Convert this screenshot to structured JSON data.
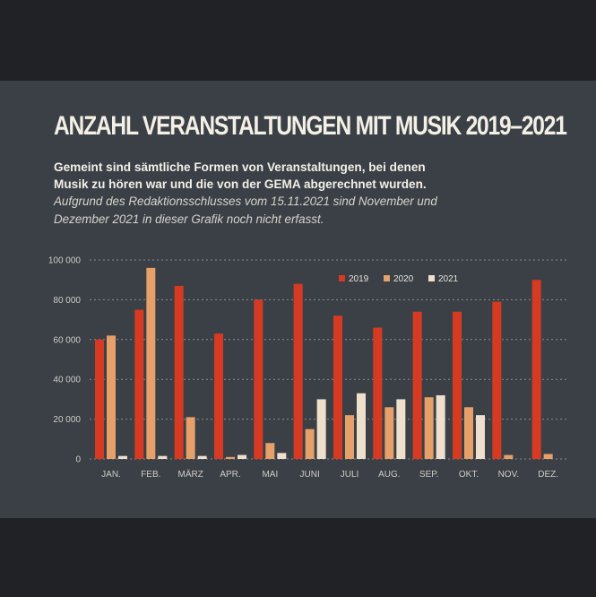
{
  "header": {
    "title": "ANZAHL VERANSTALTUNGEN MIT MUSIK 2019–2021",
    "subtitle_line1": "Gemeint sind sämtliche Formen von Veranstaltungen, bei denen",
    "subtitle_line2": "Musik zu hören war und die von der GEMA abgerechnet wurden.",
    "note_line1": "Aufgrund des Redaktionsschlusses vom 15.11.2021 sind November und",
    "note_line2": "Dezember 2021 in dieser Grafik noch nicht erfasst."
  },
  "colors": {
    "background": "#3b4046",
    "s2019": "#d63a22",
    "s2020": "#e6a06a",
    "s2021": "#efe0cd",
    "grid": "#8a8d90"
  },
  "chart_data": {
    "type": "bar",
    "title": "ANZAHL VERANSTALTUNGEN MIT MUSIK 2019–2021",
    "xlabel": "",
    "ylabel": "",
    "ylim": [
      0,
      100000
    ],
    "yticks": [
      "0",
      "20 000",
      "40 000",
      "60 000",
      "80 000",
      "100 000"
    ],
    "grid": true,
    "legend_position": "top-right",
    "categories": [
      "JAN.",
      "FEB.",
      "MÄRZ",
      "APR.",
      "MAI",
      "JUNI",
      "JULI",
      "AUG.",
      "SEP.",
      "OKT.",
      "NOV.",
      "DEZ."
    ],
    "series": [
      {
        "name": "2019",
        "values": [
          60000,
          75000,
          87000,
          63000,
          80000,
          88000,
          72000,
          66000,
          74000,
          74000,
          79000,
          90000
        ]
      },
      {
        "name": "2020",
        "values": [
          62000,
          96000,
          21000,
          1000,
          8000,
          15000,
          22000,
          26000,
          31000,
          26000,
          2000,
          2500
        ]
      },
      {
        "name": "2021",
        "values": [
          1500,
          1500,
          1500,
          2000,
          3000,
          30000,
          33000,
          30000,
          32000,
          22000,
          null,
          null
        ]
      }
    ]
  }
}
